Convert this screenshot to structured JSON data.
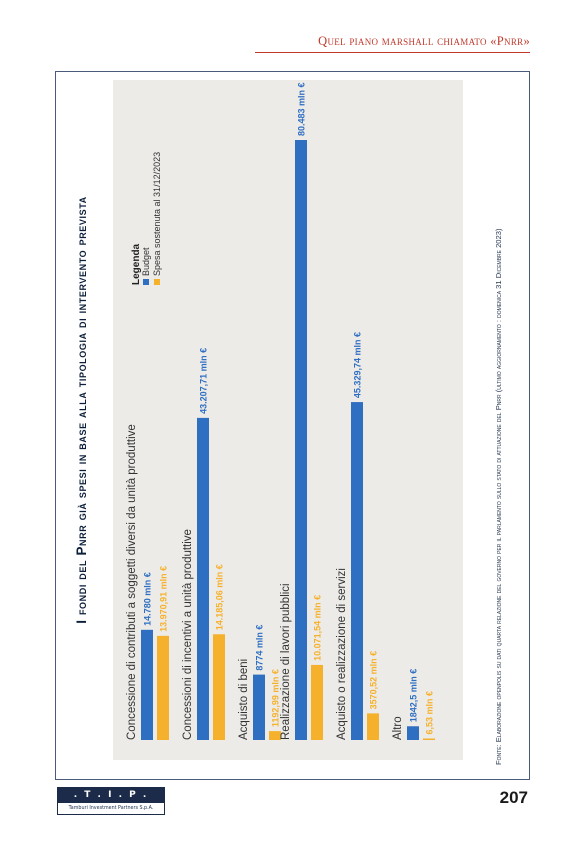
{
  "running_head": "Quel piano marshall chiamato «Pnrr»",
  "figure_title": "I fondi del Pnrr già spesi in base alla tipologia di intervento prevista",
  "source_note": "Fonte: Elaborazione openpolis su dati quarta relazione del governo per il parlamento sullo stato di attuazione del Pnrr (ultimo aggiornamento : domenica 31 Dicembre 2023)",
  "page_number": "207",
  "logo": {
    "mark": ". T . I . P .",
    "subtitle": "Tamburi Investment Partners S.p.A."
  },
  "colors": {
    "budget": "#2f6fc2",
    "spent": "#f6b12c",
    "panel": "#ecebe8",
    "accent": "#c0392b"
  },
  "chart_data": {
    "type": "bar",
    "orientation": "horizontal",
    "categories": [
      "Concessione di contributi a soggetti diversi da unità produttive",
      "Concessioni di incentivi a unità produttive",
      "Acquisto di beni",
      "Realizzazione di lavori pubblici",
      "Acquisto o realizzazione di servizi",
      "Altro"
    ],
    "series": [
      {
        "name": "Budget",
        "values": [
          14780,
          43207.71,
          8774,
          80483,
          45329.74,
          1842.5
        ],
        "labels": [
          "14.780 mln €",
          "43.207,71 mln €",
          "8774 mln €",
          "80.483 mln €",
          "45.329,74 mln €",
          "1842,5 mln €"
        ]
      },
      {
        "name": "Spesa sostenuta al 31/12/2023",
        "values": [
          13970.91,
          14185.06,
          1192.99,
          10071.54,
          3570.52,
          6.53
        ],
        "labels": [
          "13.970,91 mln €",
          "14.185,06 mln €",
          "1192,99 mln €",
          "10.071,54 mln €",
          "3570,52 mln €",
          "6,53 mln €"
        ]
      }
    ],
    "legend": {
      "title": "Legenda",
      "position": "top-right"
    },
    "xlim": [
      0,
      80483
    ],
    "grid": false
  }
}
